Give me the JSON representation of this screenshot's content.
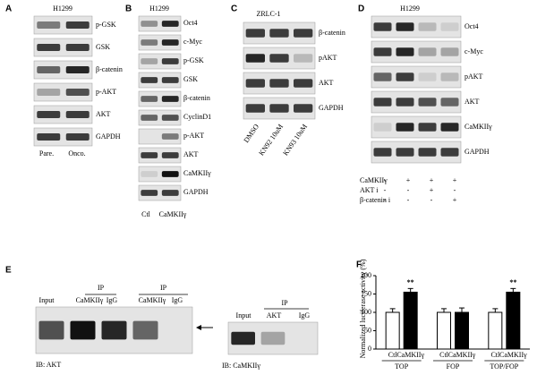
{
  "figure": {
    "A": {
      "label": "A",
      "cell": "H1299",
      "rows": [
        "p-GSK",
        "GSK",
        "β-catenin",
        "p-AKT",
        "AKT",
        "GAPDH"
      ],
      "lanes": [
        "Pare.",
        "Onco."
      ]
    },
    "B": {
      "label": "B",
      "cell": "H1299",
      "rows": [
        "Oct4",
        "c-Myc",
        "p-GSK",
        "GSK",
        "β-catenin",
        "CyclinD1",
        "p-AKT",
        "AKT",
        "CaMKIIγ",
        "GAPDH"
      ],
      "lanes": [
        "Ctl",
        "CaMKIIγ"
      ]
    },
    "C": {
      "label": "C",
      "cell": "ZRLC-1",
      "rows": [
        "β-catenin",
        "pAKT",
        "AKT",
        "GAPDH"
      ],
      "lanes": [
        "DMSO",
        "KN92 10uM",
        "KN93 10uM"
      ]
    },
    "D": {
      "label": "D",
      "cell": "H1299",
      "rows": [
        "Oct4",
        "c-Myc",
        "pAKT",
        "AKT",
        "CaMKIIγ",
        "GAPDH"
      ],
      "treatments": [
        {
          "name": "CaMKIIγ",
          "signs": [
            "-",
            "+",
            "+",
            "+"
          ]
        },
        {
          "name": "AKT i",
          "signs": [
            "-",
            "-",
            "+",
            "-"
          ]
        },
        {
          "name": "β-catenin i",
          "signs": [
            "-",
            "-",
            "-",
            "+"
          ]
        }
      ]
    },
    "E": {
      "label": "E",
      "left": {
        "ip": [
          "IP",
          "IP"
        ],
        "lanes": [
          "Input",
          "CaMKIIγ",
          "IgG",
          "CaMKIIγ",
          "IgG"
        ],
        "ib": "IB: AKT"
      },
      "right": {
        "ip": "IP",
        "lanes": [
          "Input",
          "AKT",
          "IgG"
        ],
        "ib": "IB: CaMKIIγ"
      }
    },
    "F": {
      "label": "F"
    }
  },
  "chart_data": {
    "type": "bar",
    "ylabel": "Normalized luciferase activity (%)",
    "categories": [
      "TOP",
      "FOP",
      "TOP/FOP"
    ],
    "series": [
      {
        "name": "Ctl",
        "color": "#ffffff",
        "values": [
          100,
          100,
          100
        ],
        "errors": [
          10,
          10,
          10
        ]
      },
      {
        "name": "CaMKIIγ",
        "color": "#000000",
        "values": [
          155,
          100,
          155
        ],
        "errors": [
          10,
          12,
          10
        ]
      }
    ],
    "annotations": [
      "**",
      null,
      "**"
    ],
    "ylim": [
      0,
      200
    ],
    "yticks": [
      0,
      50,
      100,
      150,
      200
    ]
  }
}
